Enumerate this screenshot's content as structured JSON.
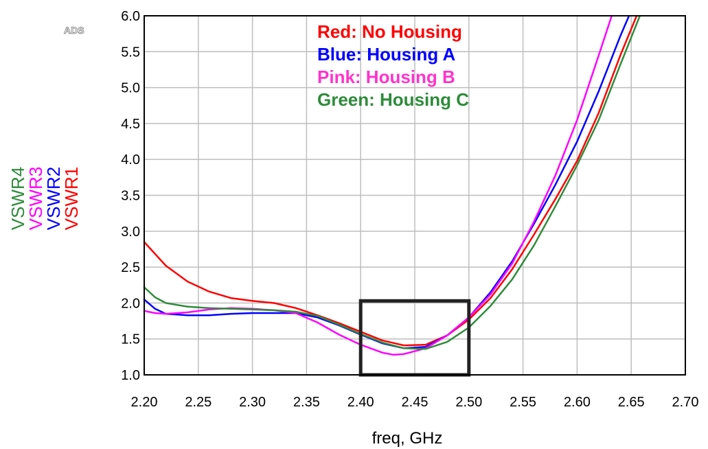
{
  "watermark": "ADS",
  "chart_data": {
    "type": "line",
    "xlabel": "freq, GHz",
    "ylabel_parts": [
      {
        "text": "VSWR4",
        "color": "#2e8b3a"
      },
      {
        "text": "VSWR3",
        "color": "#ff00ff"
      },
      {
        "text": "VSWR2",
        "color": "#0000ff"
      },
      {
        "text": "VSWR1",
        "color": "#ff0000"
      }
    ],
    "xlim": [
      2.2,
      2.7
    ],
    "ylim": [
      1.0,
      6.0
    ],
    "x_ticks": [
      "2.20",
      "2.25",
      "2.30",
      "2.35",
      "2.40",
      "2.45",
      "2.50",
      "2.55",
      "2.60",
      "2.65",
      "2.70"
    ],
    "y_ticks": [
      "1.0",
      "1.5",
      "2.0",
      "2.5",
      "3.0",
      "3.5",
      "4.0",
      "4.5",
      "5.0",
      "5.5",
      "6.0"
    ],
    "grid": true,
    "annotation_box": {
      "x": [
        2.4,
        2.5
      ],
      "y": [
        1.0,
        2.03
      ]
    },
    "legend": [
      {
        "label": "Red: No Housing",
        "color": "#ff0000"
      },
      {
        "label": "Blue: Housing A",
        "color": "#0000ff"
      },
      {
        "label": "Pink: Housing B",
        "color": "#ff33cc"
      },
      {
        "label": "Green: Housing C",
        "color": "#2e8b3a"
      }
    ],
    "series": [
      {
        "id": "VSWR1",
        "color": "#ff0000",
        "x": [
          2.2,
          2.22,
          2.24,
          2.26,
          2.28,
          2.3,
          2.32,
          2.34,
          2.36,
          2.38,
          2.4,
          2.42,
          2.44,
          2.46,
          2.48,
          2.5,
          2.52,
          2.54,
          2.56,
          2.58,
          2.6,
          2.62,
          2.64,
          2.655
        ],
        "y": [
          2.85,
          2.52,
          2.3,
          2.16,
          2.07,
          2.03,
          2.0,
          1.93,
          1.83,
          1.72,
          1.6,
          1.48,
          1.41,
          1.42,
          1.55,
          1.77,
          2.07,
          2.47,
          2.95,
          3.45,
          3.98,
          4.65,
          5.45,
          6.0
        ]
      },
      {
        "id": "VSWR2",
        "color": "#0000ff",
        "x": [
          2.2,
          2.21,
          2.22,
          2.24,
          2.26,
          2.28,
          2.3,
          2.32,
          2.34,
          2.36,
          2.38,
          2.4,
          2.42,
          2.44,
          2.46,
          2.48,
          2.5,
          2.52,
          2.54,
          2.56,
          2.58,
          2.6,
          2.62,
          2.64,
          2.648
        ],
        "y": [
          2.05,
          1.92,
          1.85,
          1.83,
          1.83,
          1.85,
          1.86,
          1.86,
          1.86,
          1.8,
          1.69,
          1.56,
          1.44,
          1.37,
          1.39,
          1.55,
          1.8,
          2.15,
          2.58,
          3.1,
          3.65,
          4.25,
          4.95,
          5.72,
          6.0
        ]
      },
      {
        "id": "VSWR3",
        "color": "#ff00ff",
        "x": [
          2.2,
          2.21,
          2.22,
          2.24,
          2.26,
          2.28,
          2.3,
          2.32,
          2.34,
          2.36,
          2.38,
          2.4,
          2.42,
          2.43,
          2.44,
          2.46,
          2.48,
          2.5,
          2.52,
          2.54,
          2.56,
          2.58,
          2.6,
          2.62,
          2.632
        ],
        "y": [
          1.89,
          1.86,
          1.85,
          1.87,
          1.91,
          1.93,
          1.92,
          1.9,
          1.86,
          1.73,
          1.56,
          1.42,
          1.31,
          1.28,
          1.29,
          1.37,
          1.55,
          1.8,
          2.12,
          2.55,
          3.13,
          3.78,
          4.55,
          5.45,
          6.0
        ]
      },
      {
        "id": "VSWR4",
        "color": "#2e8b3a",
        "x": [
          2.2,
          2.21,
          2.22,
          2.24,
          2.26,
          2.28,
          2.3,
          2.32,
          2.34,
          2.36,
          2.38,
          2.4,
          2.42,
          2.44,
          2.46,
          2.48,
          2.5,
          2.52,
          2.54,
          2.56,
          2.58,
          2.6,
          2.62,
          2.64,
          2.658
        ],
        "y": [
          2.22,
          2.08,
          2.0,
          1.95,
          1.93,
          1.92,
          1.91,
          1.9,
          1.88,
          1.82,
          1.7,
          1.57,
          1.45,
          1.37,
          1.36,
          1.46,
          1.66,
          1.96,
          2.33,
          2.8,
          3.35,
          3.92,
          4.55,
          5.32,
          6.0
        ]
      }
    ]
  }
}
